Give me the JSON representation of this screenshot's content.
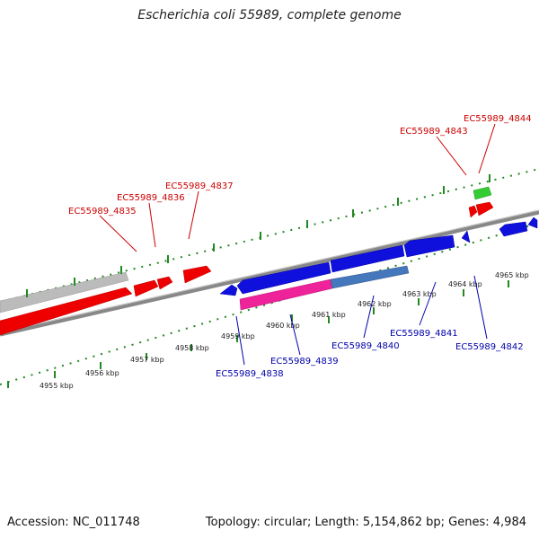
{
  "title": "Escherichia coli 55989, complete genome",
  "footer": {
    "accession": "Accession: NC_011748",
    "summary": "Topology: circular; Length: 5,154,862 bp; Genes: 4,984"
  },
  "colors": {
    "forward_gene": "#ee0000",
    "reverse_gene": "#1010dd",
    "pseudo_gene": "#bbbbbb",
    "rna_gene": "#33cc33",
    "pink_feature": "#ee2299",
    "steelblue_feature": "#4477bb",
    "backbone": "#888888",
    "ticks": "#228822",
    "forward_label": "#cc0000",
    "reverse_label": "#0000aa"
  },
  "ticks": [
    "4955 kbp",
    "4956 kbp",
    "4957 kbp",
    "4958 kbp",
    "4959 kbp",
    "4960 kbp",
    "4961 kbp",
    "4962 kbp",
    "4963 kbp",
    "4964 kbp",
    "4965 kbp"
  ],
  "forward_labels": [
    "EC55989_4835",
    "EC55989_4836",
    "EC55989_4837",
    "EC55989_4843",
    "EC55989_4844"
  ],
  "reverse_labels": [
    "EC55989_4838",
    "EC55989_4839",
    "EC55989_4840",
    "EC55989_4841",
    "EC55989_4842"
  ]
}
